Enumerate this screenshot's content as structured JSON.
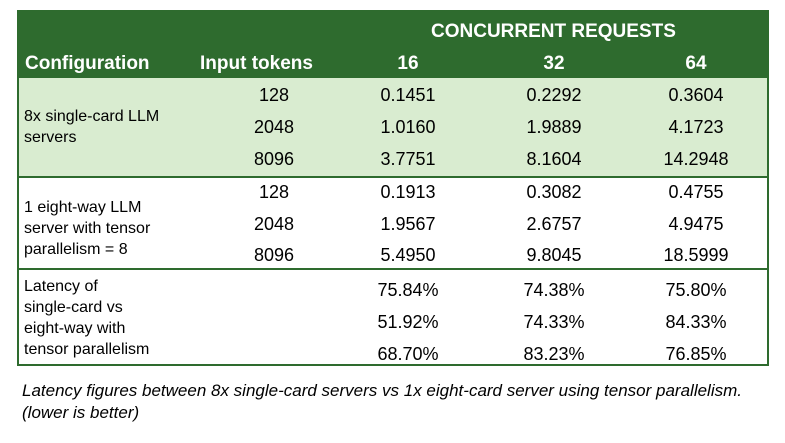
{
  "header": {
    "group_label": "CONCURRENT REQUESTS",
    "col_configuration": "Configuration",
    "col_input_tokens": "Input tokens",
    "col_16": "16",
    "col_32": "32",
    "col_64": "64"
  },
  "groups": [
    {
      "configuration": "8x single-card LLM\nservers",
      "rows": [
        {
          "input": "128",
          "c16": "0.1451",
          "c32": "0.2292",
          "c64": "0.3604"
        },
        {
          "input": "2048",
          "c16": "1.0160",
          "c32": "1.9889",
          "c64": "4.1723"
        },
        {
          "input": "8096",
          "c16": "3.7751",
          "c32": "8.1604",
          "c64": "14.2948"
        }
      ]
    },
    {
      "configuration": "1 eight-way LLM\nserver with tensor\nparallelism = 8",
      "rows": [
        {
          "input": "128",
          "c16": "0.1913",
          "c32": "0.3082",
          "c64": "0.4755"
        },
        {
          "input": "2048",
          "c16": "1.9567",
          "c32": "2.6757",
          "c64": "4.9475"
        },
        {
          "input": "8096",
          "c16": "5.4950",
          "c32": "9.8045",
          "c64": "18.5999"
        }
      ]
    },
    {
      "configuration": "Latency of\nsingle-card vs\neight-way with\ntensor parallelism",
      "rows": [
        {
          "input": "",
          "c16": "75.84%",
          "c32": "74.38%",
          "c64": "75.80%"
        },
        {
          "input": "",
          "c16": "51.92%",
          "c32": "74.33%",
          "c64": "84.33%"
        },
        {
          "input": "",
          "c16": "68.70%",
          "c32": "83.23%",
          "c64": "76.85%"
        }
      ]
    }
  ],
  "caption": "Latency figures between 8x single-card servers vs 1x eight-card server using tensor parallelism. (lower is better)"
}
